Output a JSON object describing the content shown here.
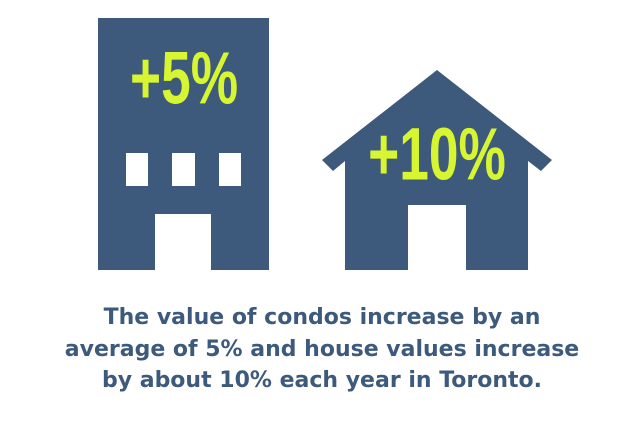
{
  "condo": {
    "label": "+5%"
  },
  "house": {
    "label": "+10%"
  },
  "caption": {
    "lines": [
      "The value of condos increase by an",
      "average of 5% and house values increase",
      "by about 10% each year in Toronto."
    ]
  }
}
